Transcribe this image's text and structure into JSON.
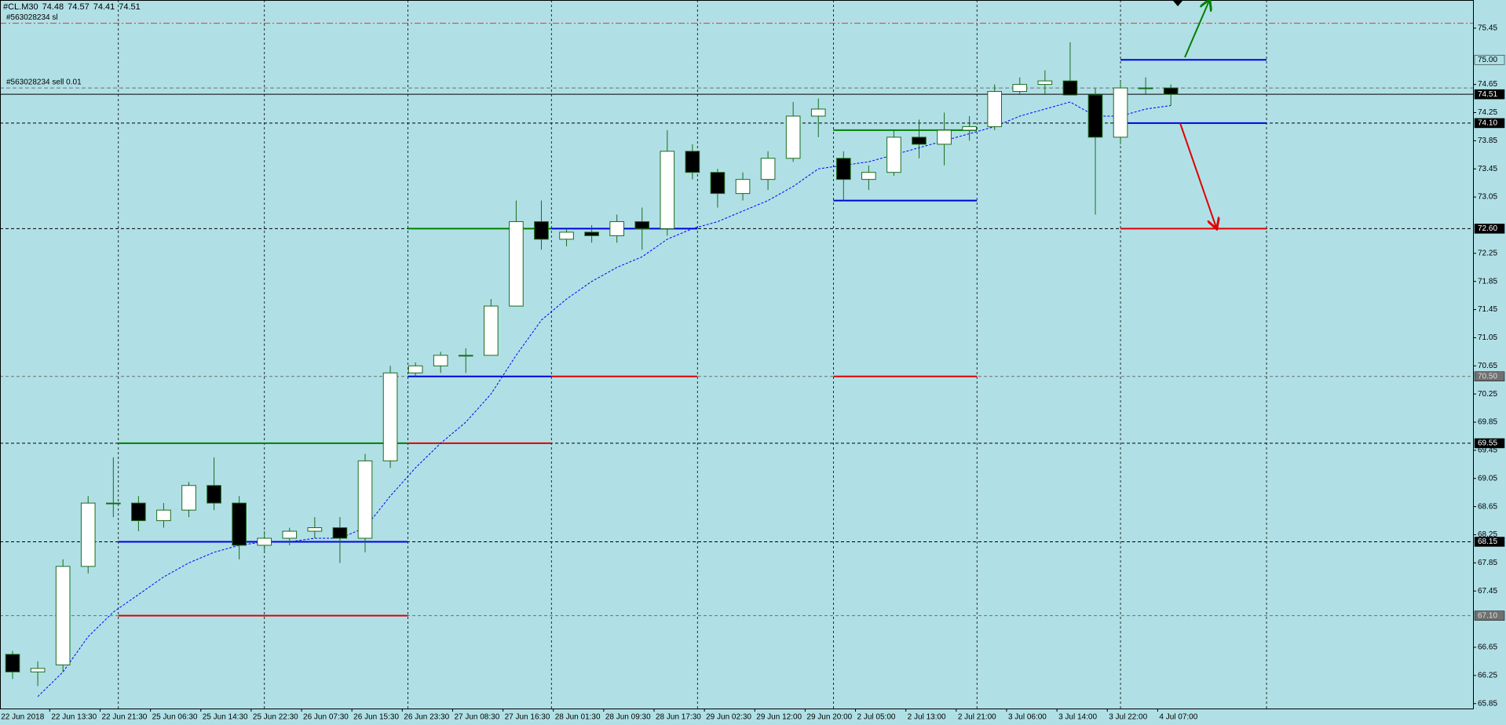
{
  "chart_data": {
    "type": "candlestick",
    "symbol": "#CL.M30",
    "ohlc": [
      74.48,
      74.57,
      74.41,
      74.51
    ],
    "x": [
      "22 Jun 2018",
      null,
      "22 Jun 13:30",
      null,
      "22 Jun 21:30",
      null,
      "25 Jun 06:30",
      null,
      "25 Jun 14:30",
      null,
      "25 Jun 22:30",
      null,
      "26 Jun 07:30",
      null,
      "26 Jun 15:30",
      null,
      "26 Jun 23:30",
      null,
      "27 Jun 08:30",
      null,
      "27 Jun 16:30",
      null,
      "28 Jun 01:30",
      null,
      "28 Jun 09:30",
      null,
      "28 Jun 17:30",
      null,
      "29 Jun 02:30",
      null,
      "29 Jun 12:00",
      null,
      "29 Jun 20:00",
      null,
      "2 Jul 05:00",
      null,
      "2 Jul 13:00",
      null,
      "2 Jul 21:00",
      null,
      "3 Jul 06:00",
      null,
      "3 Jul 14:00",
      null,
      "3 Jul 22:00",
      null,
      "4 Jul 07:00"
    ],
    "open": [
      66.55,
      66.3,
      66.4,
      67.8,
      68.7,
      68.7,
      68.45,
      68.6,
      68.95,
      68.7,
      68.1,
      68.2,
      68.3,
      68.35,
      68.2,
      69.3,
      70.55,
      70.65,
      70.8,
      70.8,
      71.5,
      72.7,
      72.45,
      72.55,
      72.5,
      72.7,
      72.6,
      73.7,
      73.4,
      73.1,
      73.3,
      73.6,
      74.2,
      73.6,
      73.3,
      73.4,
      73.9,
      73.8,
      74.0,
      74.05,
      74.55,
      74.65,
      74.7,
      74.5,
      73.9,
      74.6,
      74.6
    ],
    "high": [
      66.6,
      66.45,
      67.9,
      68.8,
      69.35,
      68.8,
      68.7,
      69.0,
      69.35,
      68.8,
      68.3,
      68.35,
      68.5,
      68.5,
      69.4,
      70.65,
      70.7,
      70.85,
      70.9,
      71.6,
      73.0,
      73.0,
      72.6,
      72.65,
      72.8,
      72.9,
      74.0,
      73.8,
      73.45,
      73.4,
      73.7,
      74.4,
      74.45,
      73.7,
      73.5,
      74.0,
      74.15,
      74.25,
      74.2,
      74.65,
      74.75,
      74.85,
      75.25,
      74.6,
      74.7,
      74.75,
      74.65
    ],
    "low": [
      66.2,
      66.1,
      66.3,
      67.7,
      68.5,
      68.3,
      68.35,
      68.5,
      68.6,
      67.9,
      68.0,
      68.1,
      68.2,
      67.85,
      68.0,
      69.2,
      70.5,
      70.55,
      70.55,
      70.8,
      71.5,
      72.3,
      72.35,
      72.4,
      72.4,
      72.3,
      72.5,
      73.3,
      72.9,
      73.0,
      73.15,
      73.55,
      73.9,
      73.0,
      73.15,
      73.35,
      73.6,
      73.5,
      73.85,
      74.0,
      74.5,
      74.5,
      74.6,
      72.8,
      73.8,
      74.5,
      74.35
    ],
    "close": [
      66.3,
      66.35,
      67.8,
      68.7,
      68.7,
      68.45,
      68.6,
      68.95,
      68.7,
      68.1,
      68.2,
      68.3,
      68.35,
      68.2,
      69.3,
      70.55,
      70.65,
      70.8,
      70.8,
      71.5,
      72.7,
      72.45,
      72.55,
      72.5,
      72.7,
      72.6,
      73.7,
      73.4,
      73.1,
      73.3,
      73.6,
      74.2,
      74.3,
      73.3,
      73.4,
      73.9,
      73.8,
      74.0,
      74.05,
      74.55,
      74.65,
      74.7,
      74.5,
      73.9,
      74.6,
      74.6,
      74.51
    ],
    "moving_average": {
      "color": "#0000ff",
      "values": [
        null,
        65.95,
        66.3,
        66.8,
        67.15,
        67.4,
        67.65,
        67.85,
        68.0,
        68.1,
        68.15,
        68.15,
        68.2,
        68.2,
        68.35,
        68.8,
        69.2,
        69.55,
        69.85,
        70.25,
        70.8,
        71.3,
        71.6,
        71.85,
        72.05,
        72.2,
        72.45,
        72.6,
        72.7,
        72.85,
        73.0,
        73.2,
        73.45,
        73.5,
        73.55,
        73.65,
        73.75,
        73.85,
        73.95,
        74.05,
        74.2,
        74.3,
        74.4,
        74.2,
        74.2,
        74.3,
        74.35
      ]
    },
    "bull_color": "#ffffff",
    "bear_color": "#000000",
    "wick_color": "#1b6b1b",
    "xlim": [
      -0.5,
      58.0
    ],
    "ylim": [
      65.78,
      75.85
    ],
    "yticks": [
      75.45,
      74.65,
      74.25,
      73.85,
      73.45,
      73.05,
      72.25,
      71.85,
      71.45,
      71.05,
      70.65,
      70.25,
      69.85,
      69.45,
      69.05,
      68.65,
      68.25,
      67.85,
      67.45,
      66.65,
      66.25,
      65.85
    ],
    "xgrid": [
      4.2,
      10.0,
      15.7,
      21.4,
      27.2,
      32.6,
      38.3,
      44.0,
      49.8
    ],
    "price_lines": [
      {
        "value": 75.0,
        "label": "75.00",
        "style": "plain"
      },
      {
        "value": 74.51,
        "label": "74.51",
        "style": "current"
      },
      {
        "value": 74.1,
        "label": "74.10",
        "style": "dark"
      },
      {
        "value": 72.6,
        "label": "72.60",
        "style": "dark"
      },
      {
        "value": 70.5,
        "label": "70.50",
        "style": "light"
      },
      {
        "value": 69.55,
        "label": "69.55",
        "style": "dark"
      },
      {
        "value": 68.15,
        "label": "68.15",
        "style": "dark"
      },
      {
        "value": 67.1,
        "label": "67.10",
        "style": "light"
      }
    ],
    "order_lines": [
      {
        "label": "#563028234 sl",
        "value": 75.52,
        "color": "#d23c3c"
      },
      {
        "label": "#563028234 sell 0.01",
        "value": 74.6,
        "color": "#707070"
      }
    ],
    "levels": [
      {
        "value": 69.55,
        "from": 4.2,
        "to": 15.7,
        "color": "#008000"
      },
      {
        "value": 68.15,
        "from": 4.2,
        "to": 15.7,
        "color": "#0000e0"
      },
      {
        "value": 67.1,
        "from": 4.2,
        "to": 15.7,
        "color": "#e00000"
      },
      {
        "value": 72.6,
        "from": 15.7,
        "to": 21.4,
        "color": "#008000"
      },
      {
        "value": 70.5,
        "from": 15.7,
        "to": 21.4,
        "color": "#0000e0"
      },
      {
        "value": 69.55,
        "from": 15.7,
        "to": 21.4,
        "color": "#e00000"
      },
      {
        "value": 72.6,
        "from": 21.4,
        "to": 27.2,
        "color": "#0000e0"
      },
      {
        "value": 70.5,
        "from": 21.4,
        "to": 27.2,
        "color": "#e00000"
      },
      {
        "value": 74.0,
        "from": 32.6,
        "to": 38.3,
        "color": "#008000"
      },
      {
        "value": 73.0,
        "from": 32.6,
        "to": 38.3,
        "color": "#0000e0"
      },
      {
        "value": 70.5,
        "from": 32.6,
        "to": 38.3,
        "color": "#e00000"
      },
      {
        "value": 75.0,
        "from": 44.0,
        "to": 49.8,
        "color": "#0000e0"
      },
      {
        "value": 74.1,
        "from": 44.0,
        "to": 49.8,
        "color": "#0000e0"
      },
      {
        "value": 72.6,
        "from": 44.0,
        "to": 49.8,
        "color": "#e00000"
      }
    ]
  }
}
